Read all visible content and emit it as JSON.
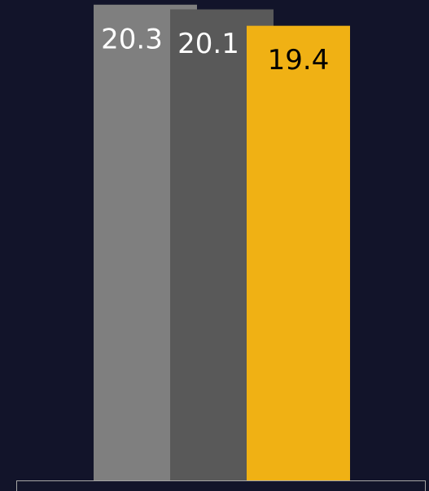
{
  "chart_data": {
    "type": "bar",
    "values": [
      20.3,
      20.1,
      19.4
    ],
    "colors": [
      "#7f7f7f",
      "#595959",
      "#f0b114"
    ],
    "label_colors": [
      "#ffffff",
      "#ffffff",
      "#000000"
    ],
    "ylim": [
      0,
      20.5
    ]
  }
}
